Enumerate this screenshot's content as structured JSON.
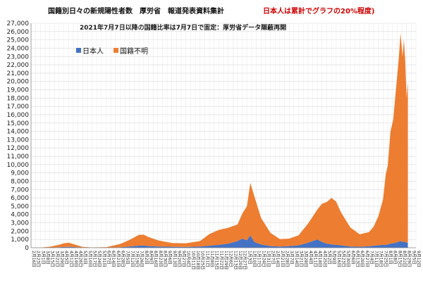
{
  "chart_data": {
    "type": "area",
    "stacked": true,
    "title": "国籍別日々の新規陽性者数　厚労省　報道発表資料集計",
    "title_note": "日本人は累計でグラフの20%程度)",
    "subtitle": "2021年7月7日以降の国籍比率は7月7日で固定：厚労省データ隠蔽再開",
    "xlabel": "",
    "ylabel": "",
    "ylim": [
      0,
      27000
    ],
    "yticks": [
      0,
      1000,
      2000,
      3000,
      4000,
      5000,
      6000,
      7000,
      8000,
      9000,
      10000,
      11000,
      12000,
      13000,
      14000,
      15000,
      16000,
      17000,
      18000,
      19000,
      20000,
      21000,
      22000,
      23000,
      24000,
      25000,
      26000,
      27000
    ],
    "ytick_labels": [
      "0",
      "1,000",
      "2,000",
      "3,000",
      "4,000",
      "5,000",
      "6,000",
      "7,000",
      "8,000",
      "9,000",
      "10,000",
      "11,000",
      "12,000",
      "13,000",
      "14,000",
      "15,000",
      "16,000",
      "17,000",
      "18,000",
      "19,000",
      "20,000",
      "21,000",
      "22,000",
      "23,000",
      "24,000",
      "25,000",
      "26,000",
      "27,000"
    ],
    "x_start": "2020-02-16",
    "x_end": "2021-09-12",
    "x": [
      "2020-02-16",
      "2020-03-01",
      "2020-03-15",
      "2020-03-29",
      "2020-04-05",
      "2020-04-12",
      "2020-04-19",
      "2020-05-03",
      "2020-05-17",
      "2020-06-07",
      "2020-06-28",
      "2020-07-12",
      "2020-07-26",
      "2020-08-02",
      "2020-08-09",
      "2020-08-23",
      "2020-09-13",
      "2020-10-04",
      "2020-10-25",
      "2020-11-08",
      "2020-11-22",
      "2020-12-06",
      "2020-12-20",
      "2020-12-27",
      "2021-01-03",
      "2021-01-08",
      "2021-01-14",
      "2021-01-24",
      "2021-02-07",
      "2021-02-21",
      "2021-03-07",
      "2021-03-21",
      "2021-04-04",
      "2021-04-18",
      "2021-04-25",
      "2021-05-02",
      "2021-05-09",
      "2021-05-16",
      "2021-05-23",
      "2021-06-06",
      "2021-06-20",
      "2021-07-04",
      "2021-07-11",
      "2021-07-18",
      "2021-07-25",
      "2021-07-29",
      "2021-08-01",
      "2021-08-05",
      "2021-08-09",
      "2021-08-13",
      "2021-08-16",
      "2021-08-18",
      "2021-08-20",
      "2021-08-23",
      "2021-08-25",
      "2021-08-27",
      "2021-08-29",
      "2021-08-31"
    ],
    "series": [
      {
        "name": "日本人",
        "color": "#4472c4",
        "values": [
          2,
          5,
          30,
          60,
          90,
          110,
          90,
          25,
          10,
          15,
          60,
          150,
          250,
          280,
          200,
          150,
          120,
          90,
          150,
          250,
          350,
          500,
          800,
          1100,
          900,
          1500,
          700,
          400,
          200,
          150,
          200,
          300,
          600,
          1000,
          700,
          500,
          400,
          350,
          300,
          150,
          120,
          180,
          250,
          300,
          350,
          350,
          400,
          500,
          550,
          600,
          700,
          750,
          800,
          700,
          750,
          700,
          600,
          600
        ]
      },
      {
        "name": "国籍不明",
        "color": "#ed7d31",
        "values": [
          8,
          15,
          100,
          300,
          450,
          500,
          350,
          80,
          30,
          60,
          400,
          800,
          1300,
          1300,
          1100,
          750,
          450,
          450,
          650,
          1400,
          1800,
          1900,
          2000,
          3000,
          4100,
          6300,
          5500,
          3200,
          1600,
          900,
          900,
          1200,
          2300,
          3600,
          4600,
          5000,
          5600,
          5200,
          4000,
          2300,
          1500,
          1700,
          2300,
          3500,
          5500,
          8500,
          9500,
          13500,
          14800,
          18300,
          20800,
          22700,
          25000,
          22300,
          24300,
          21800,
          17400,
          19400
        ]
      }
    ],
    "grid": true,
    "legend_position": "top-left"
  }
}
